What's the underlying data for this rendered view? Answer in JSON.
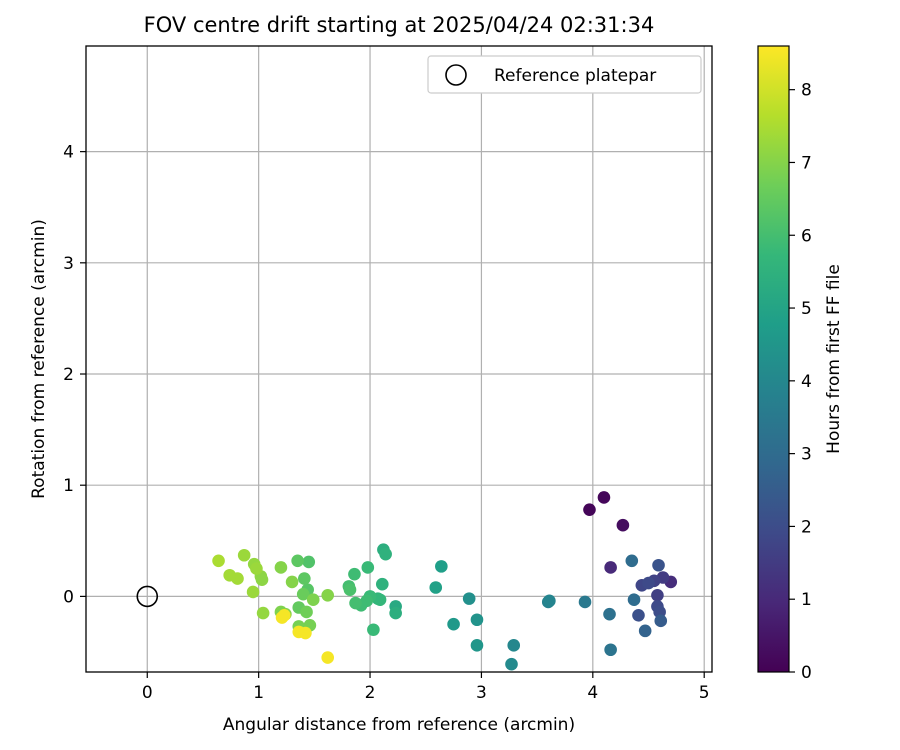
{
  "chart_data": {
    "type": "scatter",
    "title": "FOV centre drift starting at 2025/04/24 02:31:34",
    "xlabel": "Angular distance from reference (arcmin)",
    "ylabel": "Rotation from reference (arcmin)",
    "xlim": [
      -0.55,
      5.07
    ],
    "ylim": [
      -0.68,
      4.95
    ],
    "xticks": [
      0,
      1,
      2,
      3,
      4,
      5
    ],
    "yticks": [
      0,
      1,
      2,
      3,
      4
    ],
    "grid": true,
    "legend": {
      "placement": "top-right",
      "entries": [
        "Reference platepar"
      ]
    },
    "reference_point": {
      "label": "Reference platepar",
      "x": 0,
      "y": 0,
      "marker": "open-circle",
      "color": "#000000"
    },
    "colorbar": {
      "label": "Hours from first FF file",
      "range": [
        0,
        8.6
      ],
      "ticks": [
        0,
        1,
        2,
        3,
        4,
        5,
        6,
        7,
        8
      ],
      "colormap": "viridis",
      "stops": [
        "#440154",
        "#482878",
        "#3e4a89",
        "#31688e",
        "#26828e",
        "#1f9e89",
        "#35b779",
        "#6ece58",
        "#b5de2b",
        "#fde725"
      ]
    },
    "points": [
      {
        "x": 3.97,
        "y": 0.78,
        "c": 0.1
      },
      {
        "x": 4.1,
        "y": 0.89,
        "c": 0.15
      },
      {
        "x": 4.27,
        "y": 0.64,
        "c": 0.3
      },
      {
        "x": 4.16,
        "y": 0.26,
        "c": 1.0
      },
      {
        "x": 4.7,
        "y": 0.13,
        "c": 1.1
      },
      {
        "x": 4.63,
        "y": 0.17,
        "c": 1.5
      },
      {
        "x": 4.58,
        "y": 0.01,
        "c": 1.6
      },
      {
        "x": 4.55,
        "y": 0.14,
        "c": 1.7
      },
      {
        "x": 4.44,
        "y": 0.1,
        "c": 1.8
      },
      {
        "x": 4.5,
        "y": 0.12,
        "c": 1.9
      },
      {
        "x": 4.58,
        "y": -0.09,
        "c": 1.9
      },
      {
        "x": 4.6,
        "y": -0.14,
        "c": 2.0
      },
      {
        "x": 4.41,
        "y": -0.17,
        "c": 2.1
      },
      {
        "x": 4.59,
        "y": 0.28,
        "c": 2.2
      },
      {
        "x": 4.61,
        "y": -0.22,
        "c": 2.5
      },
      {
        "x": 4.47,
        "y": -0.31,
        "c": 2.7
      },
      {
        "x": 4.35,
        "y": 0.32,
        "c": 3.0
      },
      {
        "x": 4.37,
        "y": -0.03,
        "c": 3.0
      },
      {
        "x": 4.15,
        "y": -0.16,
        "c": 3.2
      },
      {
        "x": 4.16,
        "y": -0.48,
        "c": 3.3
      },
      {
        "x": 3.93,
        "y": -0.05,
        "c": 3.5
      },
      {
        "x": 3.6,
        "y": -0.05,
        "c": 3.8
      },
      {
        "x": 3.61,
        "y": -0.04,
        "c": 3.9
      },
      {
        "x": 3.29,
        "y": -0.44,
        "c": 4.0
      },
      {
        "x": 3.27,
        "y": -0.61,
        "c": 4.1
      },
      {
        "x": 2.89,
        "y": -0.02,
        "c": 4.3
      },
      {
        "x": 2.96,
        "y": -0.21,
        "c": 4.4
      },
      {
        "x": 2.96,
        "y": -0.44,
        "c": 4.5
      },
      {
        "x": 2.75,
        "y": -0.25,
        "c": 4.6
      },
      {
        "x": 2.64,
        "y": 0.27,
        "c": 4.8
      },
      {
        "x": 2.59,
        "y": 0.08,
        "c": 4.9
      },
      {
        "x": 2.23,
        "y": -0.09,
        "c": 5.2
      },
      {
        "x": 2.23,
        "y": -0.15,
        "c": 5.4
      },
      {
        "x": 2.12,
        "y": 0.42,
        "c": 5.4
      },
      {
        "x": 2.14,
        "y": 0.38,
        "c": 5.5
      },
      {
        "x": 2.11,
        "y": 0.11,
        "c": 5.5
      },
      {
        "x": 2.07,
        "y": -0.02,
        "c": 5.6
      },
      {
        "x": 2.09,
        "y": -0.03,
        "c": 5.7
      },
      {
        "x": 2.03,
        "y": -0.3,
        "c": 5.8
      },
      {
        "x": 2.0,
        "y": 0.0,
        "c": 5.8
      },
      {
        "x": 1.98,
        "y": 0.26,
        "c": 5.8
      },
      {
        "x": 1.97,
        "y": -0.04,
        "c": 5.9
      },
      {
        "x": 1.92,
        "y": -0.08,
        "c": 5.9
      },
      {
        "x": 1.86,
        "y": 0.2,
        "c": 5.9
      },
      {
        "x": 1.87,
        "y": -0.06,
        "c": 6.0
      },
      {
        "x": 1.81,
        "y": 0.09,
        "c": 6.0
      },
      {
        "x": 1.82,
        "y": 0.06,
        "c": 6.1
      },
      {
        "x": 1.45,
        "y": 0.31,
        "c": 6.2
      },
      {
        "x": 1.44,
        "y": 0.06,
        "c": 6.3
      },
      {
        "x": 1.35,
        "y": 0.32,
        "c": 6.4
      },
      {
        "x": 1.41,
        "y": 0.16,
        "c": 6.4
      },
      {
        "x": 1.36,
        "y": -0.1,
        "c": 6.5
      },
      {
        "x": 1.4,
        "y": 0.02,
        "c": 6.6
      },
      {
        "x": 1.43,
        "y": -0.14,
        "c": 6.7
      },
      {
        "x": 1.46,
        "y": -0.26,
        "c": 6.8
      },
      {
        "x": 1.36,
        "y": -0.27,
        "c": 6.8
      },
      {
        "x": 1.2,
        "y": -0.14,
        "c": 6.9
      },
      {
        "x": 1.24,
        "y": -0.16,
        "c": 7.0
      },
      {
        "x": 1.3,
        "y": 0.13,
        "c": 7.0
      },
      {
        "x": 1.49,
        "y": -0.03,
        "c": 6.9
      },
      {
        "x": 1.62,
        "y": 0.01,
        "c": 7.0
      },
      {
        "x": 1.2,
        "y": 0.26,
        "c": 7.0
      },
      {
        "x": 1.02,
        "y": 0.18,
        "c": 7.1
      },
      {
        "x": 1.03,
        "y": 0.15,
        "c": 7.1
      },
      {
        "x": 1.04,
        "y": -0.15,
        "c": 7.2
      },
      {
        "x": 0.96,
        "y": 0.29,
        "c": 7.2
      },
      {
        "x": 0.98,
        "y": 0.25,
        "c": 7.3
      },
      {
        "x": 0.95,
        "y": 0.04,
        "c": 7.3
      },
      {
        "x": 0.87,
        "y": 0.37,
        "c": 7.3
      },
      {
        "x": 0.81,
        "y": 0.16,
        "c": 7.4
      },
      {
        "x": 0.74,
        "y": 0.19,
        "c": 7.4
      },
      {
        "x": 0.64,
        "y": 0.32,
        "c": 7.5
      },
      {
        "x": 1.23,
        "y": -0.17,
        "c": 8.5
      },
      {
        "x": 1.21,
        "y": -0.19,
        "c": 8.5
      },
      {
        "x": 1.36,
        "y": -0.32,
        "c": 8.5
      },
      {
        "x": 1.42,
        "y": -0.33,
        "c": 8.5
      },
      {
        "x": 1.62,
        "y": -0.55,
        "c": 8.5
      }
    ]
  }
}
